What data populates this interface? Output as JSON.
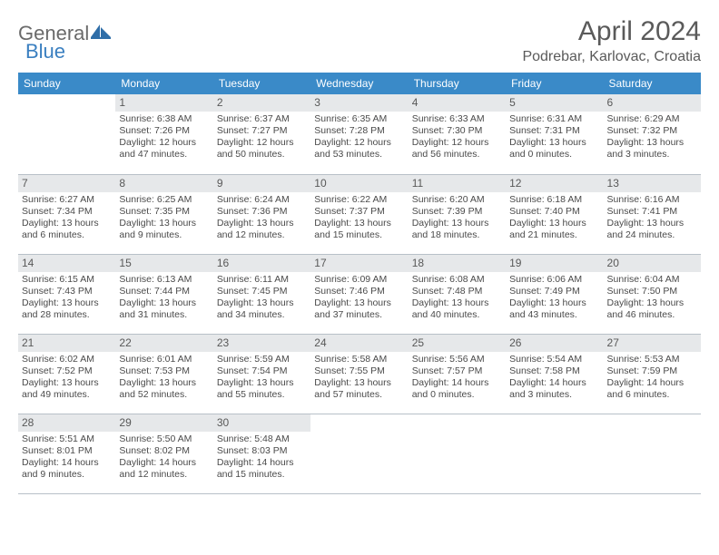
{
  "logo": {
    "general": "General",
    "blue": "Blue"
  },
  "title": "April 2024",
  "location": "Podrebar, Karlovac, Croatia",
  "colors": {
    "header_bg": "#3a8ac8",
    "header_fg": "#ffffff",
    "daynum_bg": "#e6e8ea",
    "text": "#4a4a4a",
    "border": "#b8c0c8"
  },
  "weekdays": [
    "Sunday",
    "Monday",
    "Tuesday",
    "Wednesday",
    "Thursday",
    "Friday",
    "Saturday"
  ],
  "weeks": [
    [
      null,
      {
        "n": "1",
        "sr": "Sunrise: 6:38 AM",
        "ss": "Sunset: 7:26 PM",
        "dl": "Daylight: 12 hours and 47 minutes."
      },
      {
        "n": "2",
        "sr": "Sunrise: 6:37 AM",
        "ss": "Sunset: 7:27 PM",
        "dl": "Daylight: 12 hours and 50 minutes."
      },
      {
        "n": "3",
        "sr": "Sunrise: 6:35 AM",
        "ss": "Sunset: 7:28 PM",
        "dl": "Daylight: 12 hours and 53 minutes."
      },
      {
        "n": "4",
        "sr": "Sunrise: 6:33 AM",
        "ss": "Sunset: 7:30 PM",
        "dl": "Daylight: 12 hours and 56 minutes."
      },
      {
        "n": "5",
        "sr": "Sunrise: 6:31 AM",
        "ss": "Sunset: 7:31 PM",
        "dl": "Daylight: 13 hours and 0 minutes."
      },
      {
        "n": "6",
        "sr": "Sunrise: 6:29 AM",
        "ss": "Sunset: 7:32 PM",
        "dl": "Daylight: 13 hours and 3 minutes."
      }
    ],
    [
      {
        "n": "7",
        "sr": "Sunrise: 6:27 AM",
        "ss": "Sunset: 7:34 PM",
        "dl": "Daylight: 13 hours and 6 minutes."
      },
      {
        "n": "8",
        "sr": "Sunrise: 6:25 AM",
        "ss": "Sunset: 7:35 PM",
        "dl": "Daylight: 13 hours and 9 minutes."
      },
      {
        "n": "9",
        "sr": "Sunrise: 6:24 AM",
        "ss": "Sunset: 7:36 PM",
        "dl": "Daylight: 13 hours and 12 minutes."
      },
      {
        "n": "10",
        "sr": "Sunrise: 6:22 AM",
        "ss": "Sunset: 7:37 PM",
        "dl": "Daylight: 13 hours and 15 minutes."
      },
      {
        "n": "11",
        "sr": "Sunrise: 6:20 AM",
        "ss": "Sunset: 7:39 PM",
        "dl": "Daylight: 13 hours and 18 minutes."
      },
      {
        "n": "12",
        "sr": "Sunrise: 6:18 AM",
        "ss": "Sunset: 7:40 PM",
        "dl": "Daylight: 13 hours and 21 minutes."
      },
      {
        "n": "13",
        "sr": "Sunrise: 6:16 AM",
        "ss": "Sunset: 7:41 PM",
        "dl": "Daylight: 13 hours and 24 minutes."
      }
    ],
    [
      {
        "n": "14",
        "sr": "Sunrise: 6:15 AM",
        "ss": "Sunset: 7:43 PM",
        "dl": "Daylight: 13 hours and 28 minutes."
      },
      {
        "n": "15",
        "sr": "Sunrise: 6:13 AM",
        "ss": "Sunset: 7:44 PM",
        "dl": "Daylight: 13 hours and 31 minutes."
      },
      {
        "n": "16",
        "sr": "Sunrise: 6:11 AM",
        "ss": "Sunset: 7:45 PM",
        "dl": "Daylight: 13 hours and 34 minutes."
      },
      {
        "n": "17",
        "sr": "Sunrise: 6:09 AM",
        "ss": "Sunset: 7:46 PM",
        "dl": "Daylight: 13 hours and 37 minutes."
      },
      {
        "n": "18",
        "sr": "Sunrise: 6:08 AM",
        "ss": "Sunset: 7:48 PM",
        "dl": "Daylight: 13 hours and 40 minutes."
      },
      {
        "n": "19",
        "sr": "Sunrise: 6:06 AM",
        "ss": "Sunset: 7:49 PM",
        "dl": "Daylight: 13 hours and 43 minutes."
      },
      {
        "n": "20",
        "sr": "Sunrise: 6:04 AM",
        "ss": "Sunset: 7:50 PM",
        "dl": "Daylight: 13 hours and 46 minutes."
      }
    ],
    [
      {
        "n": "21",
        "sr": "Sunrise: 6:02 AM",
        "ss": "Sunset: 7:52 PM",
        "dl": "Daylight: 13 hours and 49 minutes."
      },
      {
        "n": "22",
        "sr": "Sunrise: 6:01 AM",
        "ss": "Sunset: 7:53 PM",
        "dl": "Daylight: 13 hours and 52 minutes."
      },
      {
        "n": "23",
        "sr": "Sunrise: 5:59 AM",
        "ss": "Sunset: 7:54 PM",
        "dl": "Daylight: 13 hours and 55 minutes."
      },
      {
        "n": "24",
        "sr": "Sunrise: 5:58 AM",
        "ss": "Sunset: 7:55 PM",
        "dl": "Daylight: 13 hours and 57 minutes."
      },
      {
        "n": "25",
        "sr": "Sunrise: 5:56 AM",
        "ss": "Sunset: 7:57 PM",
        "dl": "Daylight: 14 hours and 0 minutes."
      },
      {
        "n": "26",
        "sr": "Sunrise: 5:54 AM",
        "ss": "Sunset: 7:58 PM",
        "dl": "Daylight: 14 hours and 3 minutes."
      },
      {
        "n": "27",
        "sr": "Sunrise: 5:53 AM",
        "ss": "Sunset: 7:59 PM",
        "dl": "Daylight: 14 hours and 6 minutes."
      }
    ],
    [
      {
        "n": "28",
        "sr": "Sunrise: 5:51 AM",
        "ss": "Sunset: 8:01 PM",
        "dl": "Daylight: 14 hours and 9 minutes."
      },
      {
        "n": "29",
        "sr": "Sunrise: 5:50 AM",
        "ss": "Sunset: 8:02 PM",
        "dl": "Daylight: 14 hours and 12 minutes."
      },
      {
        "n": "30",
        "sr": "Sunrise: 5:48 AM",
        "ss": "Sunset: 8:03 PM",
        "dl": "Daylight: 14 hours and 15 minutes."
      },
      null,
      null,
      null,
      null
    ]
  ]
}
